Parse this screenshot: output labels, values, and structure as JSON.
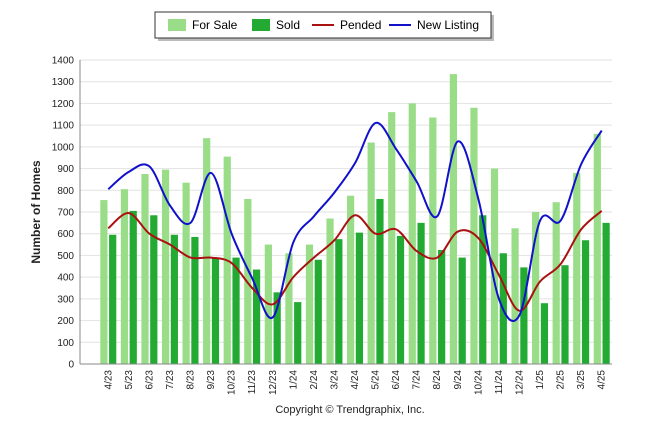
{
  "chart_data": {
    "type": "bar",
    "ylabel": "Number of Homes",
    "ylim": [
      0,
      1400
    ],
    "yticks": [
      0,
      100,
      200,
      300,
      400,
      500,
      600,
      700,
      800,
      900,
      1000,
      1100,
      1200,
      1300,
      1400
    ],
    "grid": true,
    "legend_position": "top-center",
    "categories": [
      "4/23",
      "5/23",
      "6/23",
      "7/23",
      "8/23",
      "9/23",
      "10/23",
      "11/23",
      "12/23",
      "1/24",
      "2/24",
      "3/24",
      "4/24",
      "5/24",
      "6/24",
      "7/24",
      "8/24",
      "9/24",
      "10/24",
      "11/24",
      "12/24",
      "1/25",
      "2/25",
      "3/25",
      "4/25"
    ],
    "series": [
      {
        "name": "For Sale",
        "kind": "bar",
        "color": "#99dd88",
        "values": [
          755,
          805,
          875,
          895,
          835,
          1040,
          955,
          760,
          550,
          510,
          550,
          670,
          775,
          1020,
          1160,
          1200,
          1135,
          1335,
          1180,
          900,
          625,
          700,
          745,
          880,
          1060
        ]
      },
      {
        "name": "Sold",
        "kind": "bar",
        "color": "#22aa33",
        "values": [
          595,
          705,
          685,
          595,
          585,
          490,
          490,
          435,
          330,
          285,
          480,
          575,
          605,
          760,
          590,
          650,
          525,
          490,
          685,
          510,
          445,
          280,
          455,
          570,
          650
        ]
      },
      {
        "name": "Pended",
        "kind": "line",
        "color": "#aa1111",
        "values": [
          625,
          695,
          600,
          550,
          490,
          490,
          465,
          350,
          275,
          400,
          490,
          570,
          685,
          600,
          620,
          520,
          490,
          610,
          580,
          410,
          245,
          380,
          460,
          620,
          705
        ]
      },
      {
        "name": "New Listing",
        "kind": "line",
        "color": "#1111cc",
        "values": [
          805,
          885,
          910,
          730,
          650,
          880,
          600,
          395,
          215,
          560,
          680,
          790,
          925,
          1110,
          990,
          840,
          680,
          1025,
          760,
          300,
          225,
          660,
          660,
          920,
          1075
        ]
      }
    ]
  },
  "legend": {
    "for_sale": "For Sale",
    "sold": "Sold",
    "pended": "Pended",
    "new_listing": "New Listing"
  },
  "footer": {
    "copyright": "Copyright © Trendgraphix, Inc."
  }
}
